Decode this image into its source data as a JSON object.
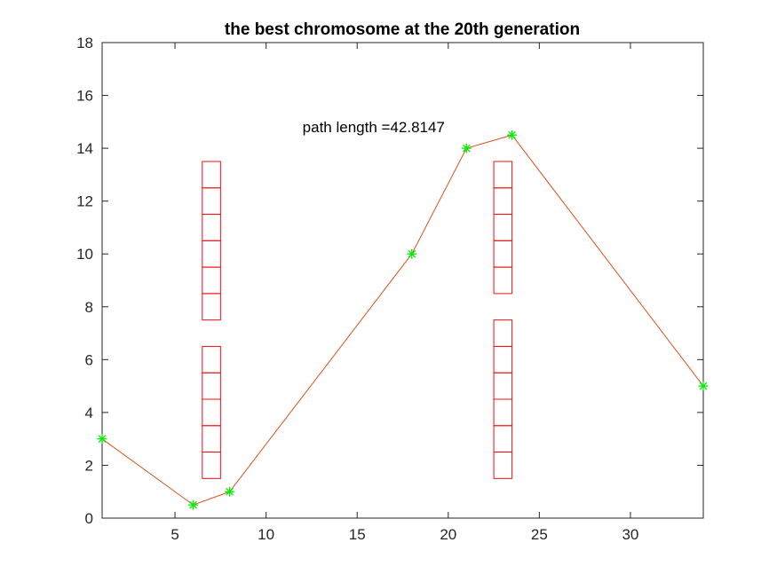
{
  "chart_data": {
    "type": "line",
    "title": "the best chromosome at the 20th generation",
    "xlabel": "",
    "ylabel": "",
    "xlim": [
      1,
      34
    ],
    "ylim": [
      0,
      18
    ],
    "xticks": [
      5,
      10,
      15,
      20,
      25,
      30
    ],
    "yticks": [
      0,
      2,
      4,
      6,
      8,
      10,
      12,
      14,
      16,
      18
    ],
    "grid": false,
    "path": {
      "x": [
        1,
        6,
        8,
        18,
        21,
        23.5,
        34
      ],
      "y": [
        3,
        0.5,
        1,
        10,
        14,
        14.5,
        5
      ],
      "line_color": "#d95319",
      "marker": "asterisk",
      "marker_color": "#00ee00"
    },
    "obstacles": {
      "color": "#ee1111",
      "cell_width": 1,
      "cell_height": 1,
      "columns": [
        {
          "x": 6.5,
          "y_ranges": [
            [
              1.5,
              6.5
            ],
            [
              7.5,
              13.5
            ]
          ]
        },
        {
          "x": 22.5,
          "y_ranges": [
            [
              1.5,
              7.5
            ],
            [
              8.5,
              13.5
            ]
          ]
        }
      ]
    },
    "annotation": {
      "text": "path length =42.8147",
      "x": 12,
      "y": 14.6
    }
  }
}
